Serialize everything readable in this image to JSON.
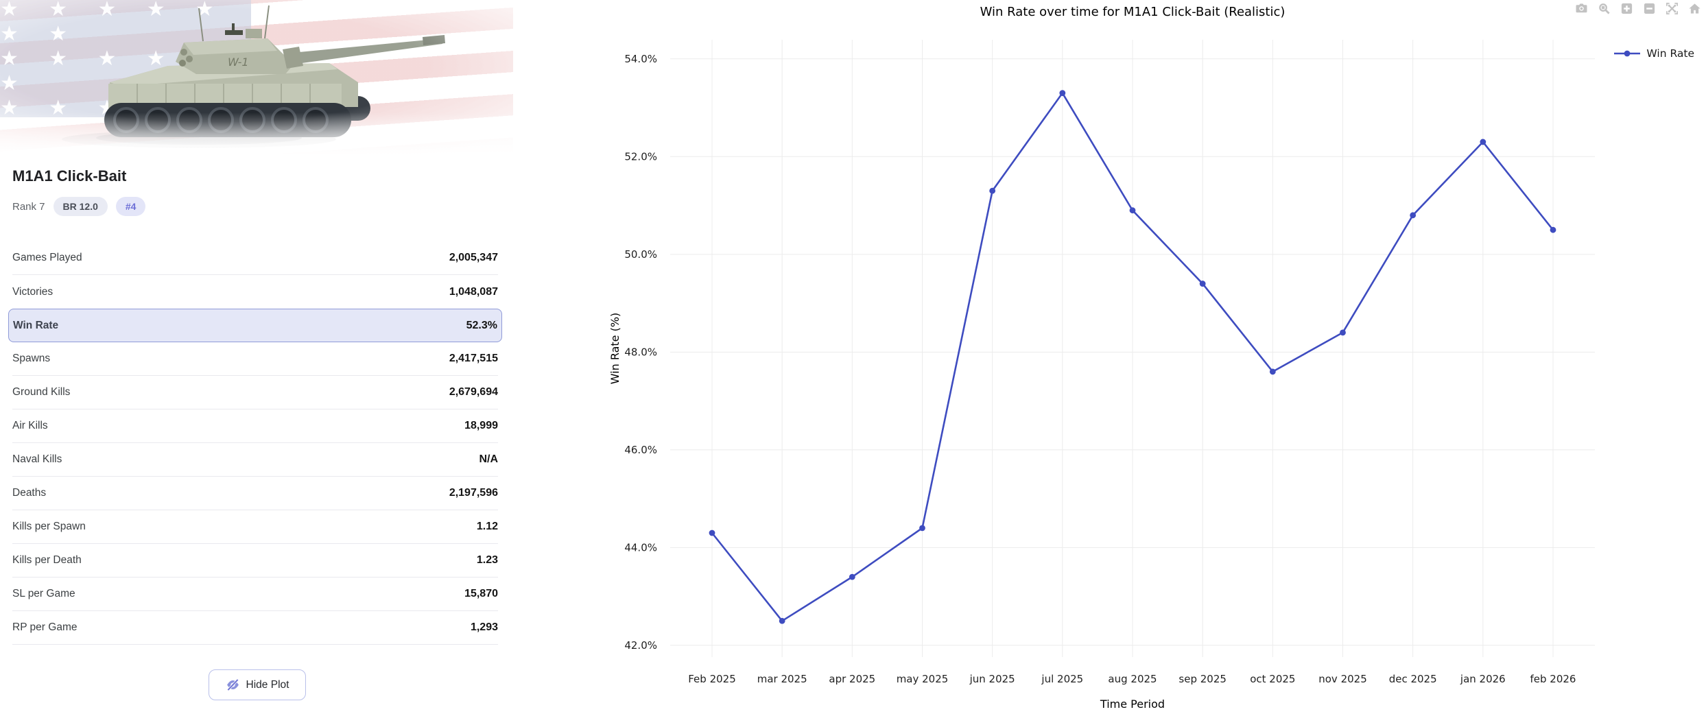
{
  "vehicle": {
    "name": "M1A1 Click-Bait",
    "rank": "Rank 7",
    "br": "BR 12.0",
    "position": "#4",
    "turret_marking": "W-1"
  },
  "stats": {
    "rows": [
      {
        "label": "Games Played",
        "value": "2,005,347",
        "highlighted": false
      },
      {
        "label": "Victories",
        "value": "1,048,087",
        "highlighted": false
      },
      {
        "label": "Win Rate",
        "value": "52.3%",
        "highlighted": true
      },
      {
        "label": "Spawns",
        "value": "2,417,515",
        "highlighted": false
      },
      {
        "label": "Ground Kills",
        "value": "2,679,694",
        "highlighted": false
      },
      {
        "label": "Air Kills",
        "value": "18,999",
        "highlighted": false
      },
      {
        "label": "Naval Kills",
        "value": "N/A",
        "highlighted": false
      },
      {
        "label": "Deaths",
        "value": "2,197,596",
        "highlighted": false
      },
      {
        "label": "Kills per Spawn",
        "value": "1.12",
        "highlighted": false
      },
      {
        "label": "Kills per Death",
        "value": "1.23",
        "highlighted": false
      },
      {
        "label": "SL per Game",
        "value": "15,870",
        "highlighted": false
      },
      {
        "label": "RP per Game",
        "value": "1,293",
        "highlighted": false
      }
    ]
  },
  "plot_toggle": {
    "label": "Hide Plot",
    "icon": "eye-off-icon",
    "accent_color": "#6f74d4"
  },
  "toolbar": {
    "icons": [
      "camera-icon",
      "zoom-icon",
      "zoom-in-icon",
      "zoom-out-icon",
      "autoscale-icon",
      "reset-home-icon"
    ],
    "color": "#c2c2c2"
  },
  "chart_data": {
    "type": "line",
    "title": "Win Rate over time for M1A1 Click-Bait (Realistic)",
    "xlabel": "Time Period",
    "ylabel": "Win Rate (%)",
    "categories": [
      "Feb 2025",
      "mar 2025",
      "apr 2025",
      "may 2025",
      "jun 2025",
      "jul 2025",
      "aug 2025",
      "sep 2025",
      "oct 2025",
      "nov 2025",
      "dec 2025",
      "jan 2026",
      "feb 2026"
    ],
    "series": [
      {
        "name": "Win Rate",
        "values": [
          44.3,
          42.5,
          43.4,
          44.4,
          51.3,
          53.3,
          50.9,
          49.4,
          47.6,
          48.4,
          50.8,
          52.3,
          50.5
        ],
        "color": "#3e4cc0"
      }
    ],
    "yticks": [
      42,
      44,
      46,
      48,
      50,
      52,
      54
    ],
    "ylim": [
      41.76,
      54.39
    ],
    "grid": true,
    "legend_position": "top-right"
  }
}
